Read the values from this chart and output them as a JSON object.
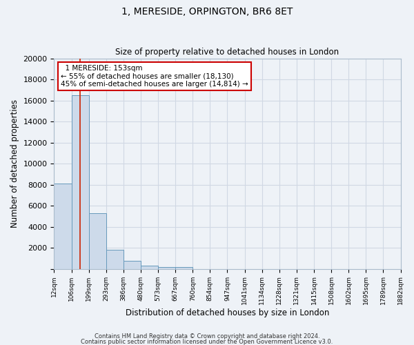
{
  "title": "1, MERESIDE, ORPINGTON, BR6 8ET",
  "subtitle": "Size of property relative to detached houses in London",
  "xlabel": "Distribution of detached houses by size in London",
  "ylabel": "Number of detached properties",
  "bar_values": [
    8100,
    16500,
    5300,
    1800,
    750,
    300,
    200,
    150,
    0,
    0,
    0,
    0,
    0,
    0,
    0,
    0,
    0,
    0,
    0,
    0
  ],
  "bar_labels": [
    "12sqm",
    "106sqm",
    "199sqm",
    "293sqm",
    "386sqm",
    "480sqm",
    "573sqm",
    "667sqm",
    "760sqm",
    "854sqm",
    "947sqm",
    "1041sqm",
    "1134sqm",
    "1228sqm",
    "1321sqm",
    "1415sqm",
    "1508sqm",
    "1602sqm",
    "1695sqm",
    "1789sqm",
    "1882sqm"
  ],
  "bar_color": "#cddaea",
  "bar_edge_color": "#6699bb",
  "ylim": [
    0,
    20000
  ],
  "yticks": [
    0,
    2000,
    4000,
    6000,
    8000,
    10000,
    12000,
    14000,
    16000,
    18000,
    20000
  ],
  "red_line_color": "#cc2200",
  "annotation_title": "1 MERESIDE: 153sqm",
  "annotation_line1": "← 55% of detached houses are smaller (18,130)",
  "annotation_line2": "45% of semi-detached houses are larger (14,814) →",
  "annotation_box_color": "#ffffff",
  "annotation_box_edge": "#cc0000",
  "footer_line1": "Contains HM Land Registry data © Crown copyright and database right 2024.",
  "footer_line2": "Contains public sector information licensed under the Open Government Licence v3.0.",
  "background_color": "#eef2f7",
  "plot_background": "#eef2f7",
  "grid_color": "#d0d8e4"
}
